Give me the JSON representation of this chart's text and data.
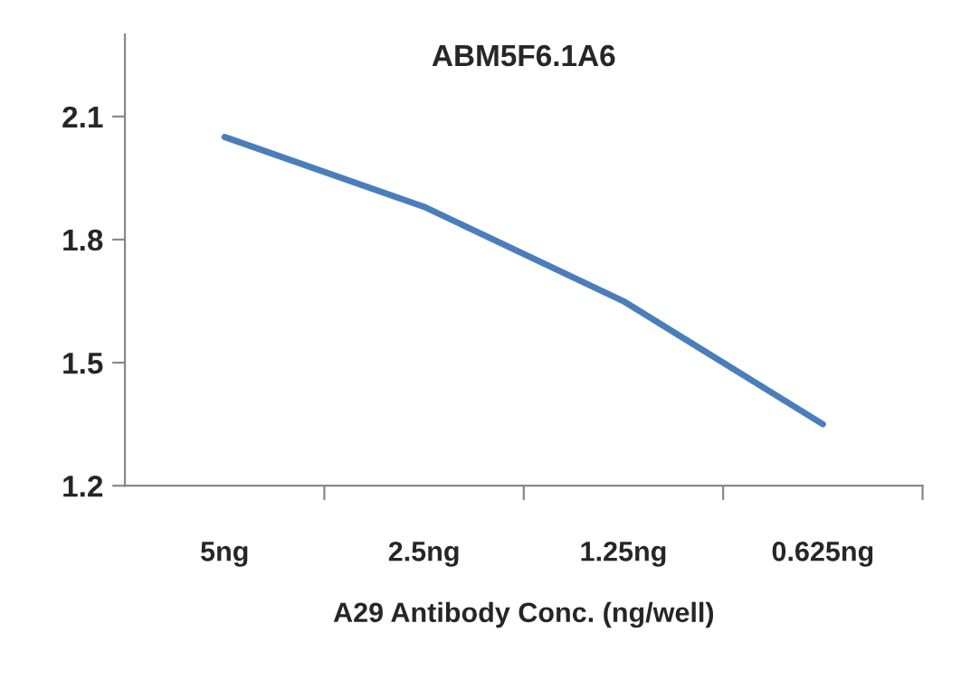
{
  "chart_data": {
    "type": "line",
    "title": "ABM5F6.1A6",
    "xlabel": "A29 Antibody Conc. (ng/well)",
    "categories": [
      "5ng",
      "2.5ng",
      "1.25ng",
      "0.625ng"
    ],
    "series": [
      {
        "color": "#4a7ebb",
        "values": [
          2.05,
          1.88,
          1.65,
          1.35
        ]
      }
    ],
    "ylim": [
      1.2,
      2.3
    ],
    "yticks": [
      1.2,
      1.5,
      1.8,
      2.1
    ],
    "grid": false,
    "marker": "none",
    "line_style": "solid"
  }
}
